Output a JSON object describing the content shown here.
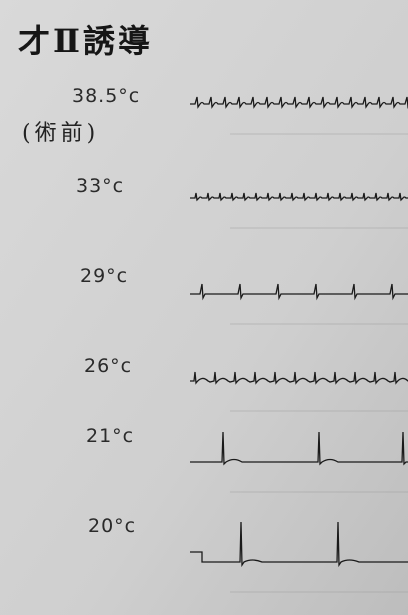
{
  "title": "才Ⅱ誘導",
  "rows": [
    {
      "label": "38.5°c",
      "note": "(術前)"
    },
    {
      "label": "33°c"
    },
    {
      "label": "29°c"
    },
    {
      "label": "26°c"
    },
    {
      "label": "21°c"
    },
    {
      "label": "20°c"
    }
  ]
}
